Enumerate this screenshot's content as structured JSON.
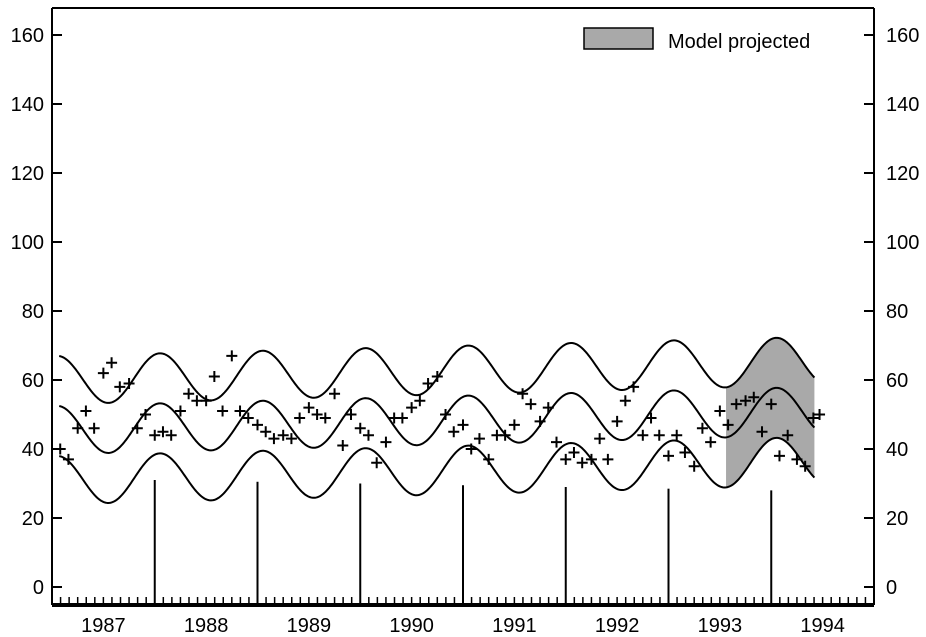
{
  "chart_data": {
    "type": "line",
    "title": "",
    "xlabel": "",
    "ylabel": "",
    "ylim": [
      -5,
      165
    ],
    "yticks": [
      0,
      20,
      40,
      60,
      80,
      100,
      120,
      140,
      160
    ],
    "x_year_range": [
      1986.5,
      1994.5
    ],
    "year_labels": [
      "1987",
      "1988",
      "1989",
      "1990",
      "1991",
      "1992",
      "1993",
      "1994"
    ],
    "grid": false,
    "legend": {
      "position": "top-right",
      "entries": [
        {
          "label": "Model projected",
          "swatch": "#a9a9a9"
        }
      ]
    },
    "projection_start": 1993.05,
    "projection_end": 1993.92,
    "band": {
      "t_start": 1986.57,
      "t_end": 1993.92,
      "mean_start": 45.5,
      "mean_end": 51.0,
      "amplitude": 7.0,
      "phase_peak": 0.55,
      "half_width": 14.5,
      "half_width_projected_end": 10.0
    },
    "observed_marker": "+",
    "observed": [
      [
        1986.58,
        40
      ],
      [
        1986.66,
        37
      ],
      [
        1986.75,
        46
      ],
      [
        1986.83,
        51
      ],
      [
        1986.91,
        46
      ],
      [
        1987.0,
        62
      ],
      [
        1987.08,
        65
      ],
      [
        1987.16,
        58
      ],
      [
        1987.25,
        59
      ],
      [
        1987.33,
        46
      ],
      [
        1987.41,
        50
      ],
      [
        1987.5,
        44
      ],
      [
        1987.58,
        45
      ],
      [
        1987.66,
        44
      ],
      [
        1987.75,
        51
      ],
      [
        1987.83,
        56
      ],
      [
        1987.91,
        54
      ],
      [
        1988.0,
        54
      ],
      [
        1988.08,
        61
      ],
      [
        1988.16,
        51
      ],
      [
        1988.25,
        67
      ],
      [
        1988.33,
        51
      ],
      [
        1988.41,
        49
      ],
      [
        1988.5,
        47
      ],
      [
        1988.58,
        45
      ],
      [
        1988.66,
        43
      ],
      [
        1988.75,
        44
      ],
      [
        1988.83,
        43
      ],
      [
        1988.91,
        49
      ],
      [
        1989.0,
        52
      ],
      [
        1989.08,
        50
      ],
      [
        1989.16,
        49
      ],
      [
        1989.25,
        56
      ],
      [
        1989.33,
        41
      ],
      [
        1989.41,
        50
      ],
      [
        1989.5,
        46
      ],
      [
        1989.58,
        44
      ],
      [
        1989.66,
        36
      ],
      [
        1989.75,
        42
      ],
      [
        1989.83,
        49
      ],
      [
        1989.91,
        49
      ],
      [
        1990.0,
        52
      ],
      [
        1990.08,
        54
      ],
      [
        1990.16,
        59
      ],
      [
        1990.25,
        61
      ],
      [
        1990.33,
        50
      ],
      [
        1990.41,
        45
      ],
      [
        1990.5,
        47
      ],
      [
        1990.58,
        40
      ],
      [
        1990.66,
        43
      ],
      [
        1990.75,
        37
      ],
      [
        1990.83,
        44
      ],
      [
        1990.91,
        44
      ],
      [
        1991.0,
        47
      ],
      [
        1991.08,
        56
      ],
      [
        1991.16,
        53
      ],
      [
        1991.25,
        48
      ],
      [
        1991.33,
        52
      ],
      [
        1991.41,
        42
      ],
      [
        1991.5,
        37
      ],
      [
        1991.58,
        39
      ],
      [
        1991.66,
        36
      ],
      [
        1991.75,
        37
      ],
      [
        1991.83,
        43
      ],
      [
        1991.91,
        37
      ],
      [
        1992.0,
        48
      ],
      [
        1992.08,
        54
      ],
      [
        1992.16,
        58
      ],
      [
        1992.25,
        44
      ],
      [
        1992.33,
        49
      ],
      [
        1992.41,
        44
      ],
      [
        1992.5,
        38
      ],
      [
        1992.58,
        44
      ],
      [
        1992.66,
        39
      ],
      [
        1992.75,
        35
      ],
      [
        1992.83,
        46
      ],
      [
        1992.91,
        42
      ],
      [
        1993.0,
        51
      ],
      [
        1993.08,
        47
      ],
      [
        1993.16,
        53
      ],
      [
        1993.25,
        54
      ],
      [
        1993.33,
        55
      ],
      [
        1993.41,
        45
      ],
      [
        1993.5,
        53
      ],
      [
        1993.58,
        38
      ],
      [
        1993.66,
        44
      ],
      [
        1993.75,
        37
      ],
      [
        1993.83,
        35
      ],
      [
        1993.91,
        49
      ],
      [
        1993.97,
        50
      ]
    ]
  },
  "colors": {
    "projection_fill": "#a9a9a9",
    "line": "#000000"
  }
}
